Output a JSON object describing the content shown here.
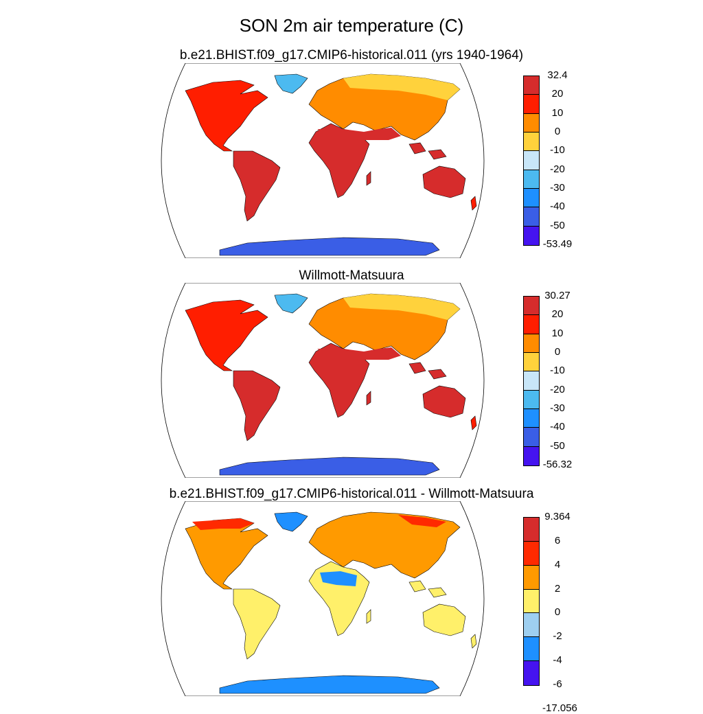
{
  "title": "SON 2m air temperature (C)",
  "land_color_note": "",
  "palette_abs": [
    "#4513f0",
    "#3a5ee6",
    "#1e90ff",
    "#4cbaf0",
    "#c8e6f8",
    "#ffd23c",
    "#ff8c00",
    "#ff1e00",
    "#d62c2c"
  ],
  "palette_diff": [
    "#4513f0",
    "#1e90ff",
    "#9ecff0",
    "#fff06a",
    "#ff9a00",
    "#ff2a00",
    "#d62c2c"
  ],
  "panels": [
    {
      "title": "b.e21.BHIST.f09_g17.CMIP6-historical.011 (yrs 1940-1964)",
      "colorbar": [
        "32.4",
        "20",
        "10",
        "0",
        "-10",
        "-20",
        "-30",
        "-40",
        "-50",
        "-53.49"
      ],
      "max": 32.4,
      "min": -53.49
    },
    {
      "title": "Willmott-Matsuura",
      "colorbar": [
        "30.27",
        "20",
        "10",
        "0",
        "-10",
        "-20",
        "-30",
        "-40",
        "-50",
        "-56.32"
      ],
      "max": 30.27,
      "min": -56.32
    },
    {
      "title": "b.e21.BHIST.f09_g17.CMIP6-historical.011 - Willmott-Matsuura",
      "colorbar": [
        "9.364",
        "6",
        "4",
        "2",
        "0",
        "-2",
        "-4",
        "-6",
        "-17.056"
      ],
      "max": 9.364,
      "min": -17.056
    }
  ]
}
